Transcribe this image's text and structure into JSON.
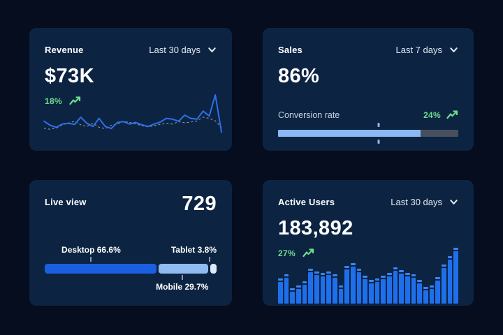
{
  "theme": {
    "page_bg": "#050D1F",
    "card_bg": "#0C2442",
    "line_blue": "#2E6FE8",
    "dashed_gray": "#93A0B4",
    "bar_blue": "#1E6FEB",
    "progress_fill": "#8BB8F2",
    "progress_track": "#474F5E",
    "green": "#6FDC8C",
    "desktop_blue": "#1A5FE0",
    "mobile_blue": "#8FBAF2",
    "tablet_blue": "#DCE9FB"
  },
  "cards": {
    "revenue": {
      "title": "Revenue",
      "range": "Last 30 days",
      "value": "$73K",
      "delta": "18%"
    },
    "sales": {
      "title": "Sales",
      "range": "Last 7 days",
      "value": "86%",
      "metric": "Conversion rate",
      "delta": "24%",
      "progress_pct": 79,
      "marker_pct": 56
    },
    "live": {
      "title": "Live view",
      "value": "729",
      "labels": {
        "desktop": "Desktop 66.6%",
        "mobile": "Mobile 29.7%",
        "tablet": "Tablet 3.8%"
      }
    },
    "users": {
      "title": "Active Users",
      "range": "Last 30 days",
      "value": "183,892",
      "delta": "27%"
    }
  },
  "chart_data": [
    {
      "id": "revenue-trend",
      "type": "line",
      "title": "Revenue",
      "x": "days 1-30 (unlabeled)",
      "units": "relative 0-100 (no axes shown)",
      "grid": false,
      "legend": false,
      "series": [
        {
          "name": "current",
          "style": "solid",
          "color": "#2E6FE8",
          "values": [
            35,
            25,
            20,
            28,
            30,
            27,
            45,
            30,
            22,
            42,
            22,
            17,
            32,
            34,
            28,
            32,
            26,
            22,
            28,
            33,
            42,
            40,
            35,
            50,
            42,
            40,
            60,
            48,
            100,
            8
          ]
        },
        {
          "name": "previous",
          "style": "dashed",
          "color": "#93A0B4",
          "values": [
            18,
            15,
            18,
            26,
            30,
            35,
            26,
            22,
            30,
            20,
            17,
            25,
            28,
            35,
            32,
            28,
            24,
            21,
            24,
            27,
            30,
            28,
            34,
            31,
            33,
            36,
            45,
            42,
            36,
            20
          ]
        }
      ]
    },
    {
      "id": "conversion-progress",
      "type": "bar",
      "title": "Conversion rate",
      "value_pct": 79,
      "marker_pct": 56,
      "xlim": [
        0,
        100
      ]
    },
    {
      "id": "device-split",
      "type": "bar",
      "stacked": true,
      "title": "Live view device split",
      "categories": [
        "Desktop",
        "Mobile",
        "Tablet"
      ],
      "values": [
        66.6,
        29.7,
        3.8
      ],
      "colors": [
        "#1A5FE0",
        "#8FBAF2",
        "#DCE9FB"
      ]
    },
    {
      "id": "active-users-trend",
      "type": "bar",
      "title": "Active Users",
      "x": "days 1-30 (unlabeled)",
      "units": "relative 0-100 (no axes shown)",
      "ylim": [
        0,
        100
      ],
      "values": [
        45,
        52,
        28,
        33,
        40,
        62,
        58,
        55,
        58,
        52,
        33,
        68,
        73,
        62,
        50,
        42,
        45,
        50,
        55,
        65,
        60,
        55,
        52,
        42,
        30,
        33,
        48,
        70,
        85,
        100
      ]
    }
  ]
}
